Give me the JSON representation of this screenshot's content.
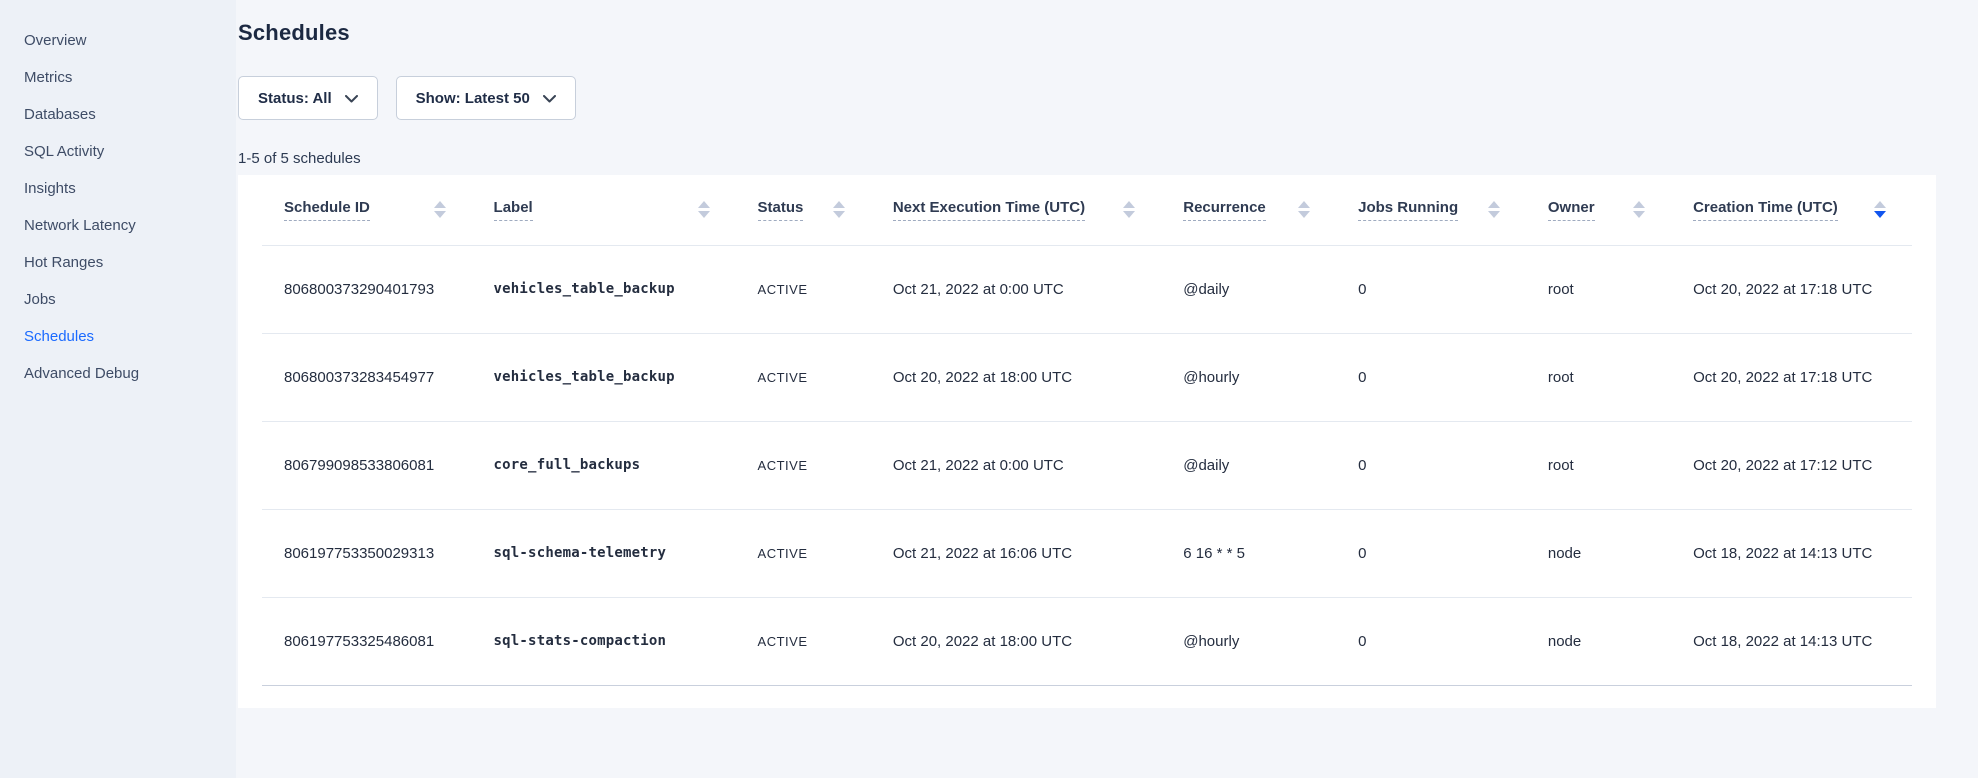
{
  "colors": {
    "accent_blue": "#1a6aff",
    "sort_active_blue": "#1155ee"
  },
  "sidebar": {
    "items": [
      {
        "label": "Overview",
        "active": false
      },
      {
        "label": "Metrics",
        "active": false
      },
      {
        "label": "Databases",
        "active": false
      },
      {
        "label": "SQL Activity",
        "active": false
      },
      {
        "label": "Insights",
        "active": false
      },
      {
        "label": "Network Latency",
        "active": false
      },
      {
        "label": "Hot Ranges",
        "active": false
      },
      {
        "label": "Jobs",
        "active": false
      },
      {
        "label": "Schedules",
        "active": true
      },
      {
        "label": "Advanced Debug",
        "active": false
      }
    ]
  },
  "header": {
    "title": "Schedules"
  },
  "filters": [
    {
      "name": "status-filter",
      "label": "Status: All"
    },
    {
      "name": "show-filter",
      "label": "Show: Latest 50"
    }
  ],
  "results_count": "1-5 of 5 schedules",
  "table": {
    "columns": [
      {
        "key": "id",
        "label": "Schedule ID",
        "sort": "none"
      },
      {
        "key": "label",
        "label": "Label",
        "sort": "none"
      },
      {
        "key": "status",
        "label": "Status",
        "sort": "none"
      },
      {
        "key": "next_execution",
        "label": "Next Execution Time (UTC)",
        "sort": "none"
      },
      {
        "key": "recurrence",
        "label": "Recurrence",
        "sort": "none"
      },
      {
        "key": "jobs_running",
        "label": "Jobs Running",
        "sort": "none"
      },
      {
        "key": "owner",
        "label": "Owner",
        "sort": "none"
      },
      {
        "key": "creation_time",
        "label": "Creation Time (UTC)",
        "sort": "desc"
      }
    ],
    "rows": [
      {
        "id": "806800373290401793",
        "label": "vehicles_table_backup",
        "status": "ACTIVE",
        "next_execution": "Oct 21, 2022 at 0:00 UTC",
        "recurrence": "@daily",
        "jobs_running": "0",
        "owner": "root",
        "creation_time": "Oct 20, 2022 at 17:18 UTC"
      },
      {
        "id": "806800373283454977",
        "label": "vehicles_table_backup",
        "status": "ACTIVE",
        "next_execution": "Oct 20, 2022 at 18:00 UTC",
        "recurrence": "@hourly",
        "jobs_running": "0",
        "owner": "root",
        "creation_time": "Oct 20, 2022 at 17:18 UTC"
      },
      {
        "id": "806799098533806081",
        "label": "core_full_backups",
        "status": "ACTIVE",
        "next_execution": "Oct 21, 2022 at 0:00 UTC",
        "recurrence": "@daily",
        "jobs_running": "0",
        "owner": "root",
        "creation_time": "Oct 20, 2022 at 17:12 UTC"
      },
      {
        "id": "806197753350029313",
        "label": "sql-schema-telemetry",
        "status": "ACTIVE",
        "next_execution": "Oct 21, 2022 at 16:06 UTC",
        "recurrence": "6 16 * * 5",
        "jobs_running": "0",
        "owner": "node",
        "creation_time": "Oct 18, 2022 at 14:13 UTC"
      },
      {
        "id": "806197753325486081",
        "label": "sql-stats-compaction",
        "status": "ACTIVE",
        "next_execution": "Oct 20, 2022 at 18:00 UTC",
        "recurrence": "@hourly",
        "jobs_running": "0",
        "owner": "node",
        "creation_time": "Oct 18, 2022 at 14:13 UTC"
      }
    ]
  }
}
